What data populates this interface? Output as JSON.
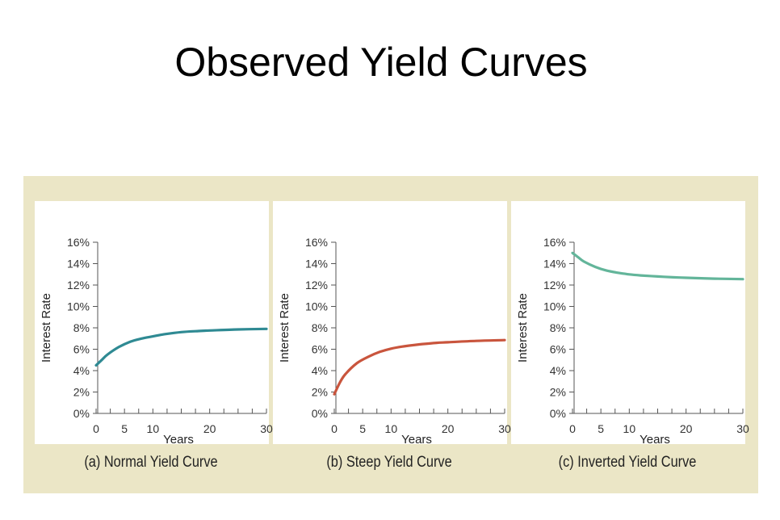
{
  "title": "Observed Yield Curves",
  "colors": {
    "panel_background": "#ebe6c6",
    "normal_curve": "#2f8a93",
    "steep_curve": "#c9553d",
    "inverted_curve": "#63b59a"
  },
  "chart_data": [
    {
      "type": "line",
      "caption": "(a) Normal Yield Curve",
      "xlabel": "Years",
      "ylabel": "Interest Rate",
      "xlim": [
        0,
        30
      ],
      "ylim": [
        0,
        16
      ],
      "x_ticks": [
        0,
        5,
        10,
        20,
        30
      ],
      "y_ticks": [
        "0%",
        "2%",
        "4%",
        "6%",
        "8%",
        "10%",
        "12%",
        "14%",
        "16%"
      ],
      "grid": false,
      "series": [
        {
          "x": [
            0,
            1,
            2,
            4,
            6,
            8,
            10,
            12,
            15,
            18,
            20,
            25,
            30
          ],
          "y": [
            4.5,
            5.0,
            5.5,
            6.2,
            6.7,
            7.0,
            7.2,
            7.4,
            7.6,
            7.7,
            7.75,
            7.85,
            7.9
          ]
        }
      ]
    },
    {
      "type": "line",
      "caption": "(b) Steep Yield Curve",
      "xlabel": "Years",
      "ylabel": "Interest Rate",
      "xlim": [
        0,
        30
      ],
      "ylim": [
        0,
        16
      ],
      "x_ticks": [
        0,
        5,
        10,
        20,
        30
      ],
      "y_ticks": [
        "0%",
        "2%",
        "4%",
        "6%",
        "8%",
        "10%",
        "12%",
        "14%",
        "16%"
      ],
      "grid": false,
      "series": [
        {
          "x": [
            0,
            1,
            2,
            4,
            6,
            8,
            10,
            12,
            15,
            18,
            20,
            25,
            30
          ],
          "y": [
            1.8,
            2.9,
            3.7,
            4.7,
            5.3,
            5.75,
            6.05,
            6.25,
            6.45,
            6.6,
            6.65,
            6.78,
            6.85
          ]
        }
      ]
    },
    {
      "type": "line",
      "caption": "(c) Inverted Yield Curve",
      "xlabel": "Years",
      "ylabel": "Interest Rate",
      "xlim": [
        0,
        30
      ],
      "ylim": [
        0,
        16
      ],
      "x_ticks": [
        0,
        5,
        10,
        20,
        30
      ],
      "y_ticks": [
        "0%",
        "2%",
        "4%",
        "6%",
        "8%",
        "10%",
        "12%",
        "14%",
        "16%"
      ],
      "grid": false,
      "series": [
        {
          "x": [
            0,
            1,
            2,
            4,
            6,
            8,
            10,
            12,
            15,
            18,
            20,
            25,
            30
          ],
          "y": [
            15.0,
            14.6,
            14.2,
            13.7,
            13.35,
            13.15,
            13.0,
            12.9,
            12.8,
            12.72,
            12.68,
            12.6,
            12.55
          ]
        }
      ]
    }
  ]
}
